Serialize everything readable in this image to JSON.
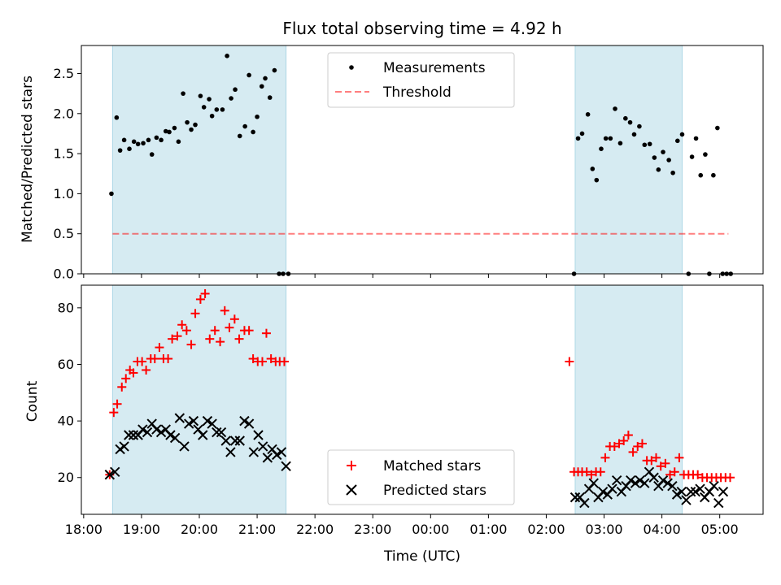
{
  "chart_data": {
    "type": "scatter",
    "title": "Flux total observing time = 4.92 h",
    "xlabel": "Time (UTC)",
    "x_ticks": [
      "18:00",
      "19:00",
      "20:00",
      "21:00",
      "22:00",
      "23:00",
      "00:00",
      "01:00",
      "02:00",
      "03:00",
      "04:00",
      "05:00"
    ],
    "xlim_hours": [
      17.96,
      29.75
    ],
    "shaded_intervals_hours": [
      [
        18.5,
        21.5
      ],
      [
        26.5,
        28.35
      ]
    ],
    "shade_color": "#add8e6",
    "panels": [
      {
        "ylabel": "Matched/Predicted stars",
        "ylim": [
          0,
          2.85
        ],
        "y_ticks": [
          0.0,
          0.5,
          1.0,
          1.5,
          2.0,
          2.5
        ],
        "y_tick_labels": [
          "0.0",
          "0.5",
          "1.0",
          "1.5",
          "2.0",
          "2.5"
        ],
        "legend": [
          "Measurements",
          "Threshold"
        ],
        "legend_position": "upper center",
        "threshold": {
          "name": "Threshold",
          "value": 0.5,
          "x_range": [
            18.5,
            29.15
          ],
          "color": "#ff0000",
          "alpha": 0.5,
          "style": "dashed"
        },
        "series": [
          {
            "name": "Measurements",
            "color": "#000000",
            "marker": "dot",
            "x": [
              18.48,
              18.57,
              18.63,
              18.7,
              18.79,
              18.87,
              18.94,
              19.03,
              19.12,
              19.18,
              19.26,
              19.34,
              19.42,
              19.48,
              19.57,
              19.64,
              19.72,
              19.79,
              19.86,
              19.93,
              20.02,
              20.08,
              20.17,
              20.22,
              20.3,
              20.4,
              20.48,
              20.55,
              20.62,
              20.7,
              20.79,
              20.86,
              20.93,
              21.0,
              21.08,
              21.14,
              21.22,
              21.3,
              21.38,
              21.45,
              21.54,
              26.48,
              26.55,
              26.62,
              26.72,
              26.8,
              26.87,
              26.95,
              27.03,
              27.11,
              27.19,
              27.28,
              27.37,
              27.45,
              27.52,
              27.61,
              27.7,
              27.79,
              27.87,
              27.94,
              28.02,
              28.12,
              28.19,
              28.27,
              28.35,
              28.46,
              28.52,
              28.59,
              28.67,
              28.75,
              28.82,
              28.89,
              28.96,
              29.05,
              29.12,
              29.19
            ],
            "y": [
              1.0,
              1.95,
              1.54,
              1.67,
              1.56,
              1.65,
              1.62,
              1.63,
              1.67,
              1.49,
              1.7,
              1.67,
              1.78,
              1.77,
              1.82,
              1.65,
              2.25,
              1.89,
              1.8,
              1.86,
              2.22,
              2.08,
              2.18,
              1.97,
              2.05,
              2.05,
              2.72,
              2.19,
              2.3,
              1.72,
              1.84,
              2.48,
              1.77,
              1.96,
              2.34,
              2.44,
              2.2,
              2.54,
              0.0,
              0.0,
              0.0,
              0.0,
              1.69,
              1.75,
              1.99,
              1.31,
              1.17,
              1.56,
              1.69,
              1.69,
              2.06,
              1.63,
              1.94,
              1.89,
              1.74,
              1.84,
              1.61,
              1.62,
              1.45,
              1.3,
              1.52,
              1.42,
              1.26,
              1.66,
              1.74,
              0.0,
              1.46,
              1.69,
              1.23,
              1.49,
              0.0,
              1.23,
              1.82,
              0.0,
              0.0,
              0.0
            ]
          }
        ]
      },
      {
        "ylabel": "Count",
        "ylim": [
          7,
          88
        ],
        "y_ticks": [
          20,
          40,
          60,
          80
        ],
        "y_tick_labels": [
          "20",
          "40",
          "60",
          "80"
        ],
        "legend": [
          "Matched stars",
          "Predicted stars"
        ],
        "legend_position": "lower center",
        "series": [
          {
            "name": "Matched stars",
            "color": "#ff0000",
            "marker": "plus",
            "x": [
              18.45,
              18.52,
              18.58,
              18.66,
              18.73,
              18.8,
              18.86,
              18.93,
              19.01,
              19.08,
              19.16,
              19.23,
              19.31,
              19.38,
              19.46,
              19.53,
              19.62,
              19.7,
              19.78,
              19.86,
              19.93,
              20.02,
              20.1,
              20.18,
              20.27,
              20.36,
              20.44,
              20.52,
              20.61,
              20.69,
              20.78,
              20.86,
              20.93,
              21.01,
              21.09,
              21.16,
              21.24,
              21.32,
              21.39,
              21.47,
              26.4,
              26.48,
              26.55,
              26.62,
              26.7,
              26.78,
              26.86,
              26.94,
              27.02,
              27.1,
              27.18,
              27.26,
              27.34,
              27.42,
              27.5,
              27.58,
              27.66,
              27.74,
              27.82,
              27.9,
              27.98,
              28.06,
              28.14,
              28.22,
              28.3,
              28.38,
              28.46,
              28.54,
              28.62,
              28.7,
              28.78,
              28.86,
              28.94,
              29.02,
              29.1,
              29.18
            ],
            "y": [
              21,
              43,
              46,
              52,
              55,
              58,
              57,
              61,
              61,
              58,
              62,
              62,
              66,
              62,
              62,
              69,
              70,
              74,
              72,
              67,
              78,
              83,
              85,
              69,
              72,
              68,
              79,
              73,
              76,
              69,
              72,
              72,
              62,
              61,
              61,
              71,
              62,
              61,
              61,
              61,
              61,
              22,
              22,
              22,
              22,
              21,
              22,
              22,
              27,
              31,
              31,
              32,
              33,
              35,
              29,
              31,
              32,
              26,
              26,
              27,
              24,
              25,
              21,
              22,
              27,
              21,
              21,
              21,
              21,
              20,
              20,
              20,
              20,
              20,
              20,
              20
            ],
            "y_note_trim": true
          },
          {
            "name": "Predicted stars",
            "color": "#000000",
            "marker": "x",
            "x": [
              18.45,
              18.54,
              18.63,
              18.7,
              18.78,
              18.86,
              18.94,
              19.02,
              19.1,
              19.18,
              19.26,
              19.34,
              19.42,
              19.5,
              19.58,
              19.66,
              19.74,
              19.82,
              19.9,
              19.98,
              20.06,
              20.14,
              20.22,
              20.3,
              20.38,
              20.46,
              20.54,
              20.62,
              20.7,
              20.78,
              20.86,
              20.94,
              21.02,
              21.1,
              21.18,
              21.26,
              21.34,
              21.42,
              21.5,
              26.5,
              26.58,
              26.66,
              26.74,
              26.82,
              26.9,
              26.98,
              27.06,
              27.14,
              27.22,
              27.3,
              27.38,
              27.46,
              27.54,
              27.62,
              27.7,
              27.78,
              27.86,
              27.94,
              28.02,
              28.1,
              28.18,
              28.26,
              28.34,
              28.42,
              28.5,
              28.58,
              28.66,
              28.74,
              28.82,
              28.9,
              28.98,
              29.06
            ],
            "y": [
              21,
              22,
              30,
              31,
              35,
              35,
              35,
              37,
              36,
              39,
              37,
              36,
              37,
              35,
              34,
              41,
              31,
              39,
              40,
              37,
              35,
              40,
              39,
              36,
              36,
              33,
              29,
              33,
              33,
              40,
              39,
              29,
              35,
              31,
              27,
              30,
              28,
              29,
              24,
              13,
              13,
              11,
              16,
              18,
              13,
              15,
              14,
              16,
              19,
              15,
              17,
              19,
              18,
              19,
              18,
              22,
              20,
              17,
              19,
              18,
              17,
              14,
              15,
              12,
              15,
              15,
              16,
              13,
              15,
              17,
              11,
              15
            ]
          }
        ]
      }
    ]
  }
}
